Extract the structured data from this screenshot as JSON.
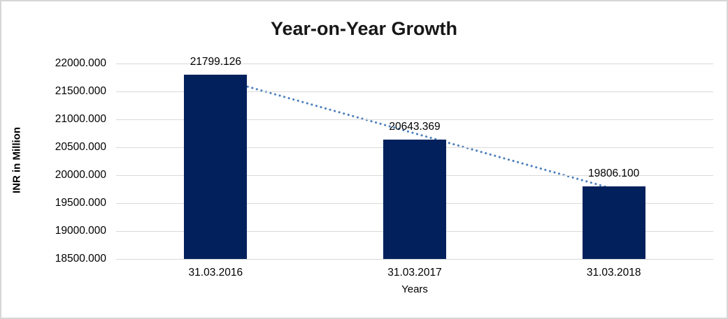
{
  "chart_data": {
    "type": "bar",
    "title": "Year-on-Year Growth",
    "xlabel": "Years",
    "ylabel": "INR in Million",
    "categories": [
      "31.03.2016",
      "31.03.2017",
      "31.03.2018"
    ],
    "values": [
      21799.126,
      20643.369,
      19806.1
    ],
    "data_labels": [
      "21799.126",
      "20643.369",
      "19806.100"
    ],
    "yticks": [
      "22000.000",
      "21500.000",
      "21000.000",
      "20500.000",
      "20000.000",
      "19500.000",
      "19000.000",
      "18500.000"
    ],
    "ylim": [
      18500,
      22000
    ],
    "grid": "horizontal",
    "legend": "none",
    "trendline": {
      "type": "linear",
      "style": "dotted"
    },
    "colors": {
      "bar": "#02215c",
      "trendline": "#4e81bd",
      "gridline": "#d9d9d9",
      "text": "#000000",
      "title_text": "#171717",
      "border": "#d6d6d6"
    }
  }
}
